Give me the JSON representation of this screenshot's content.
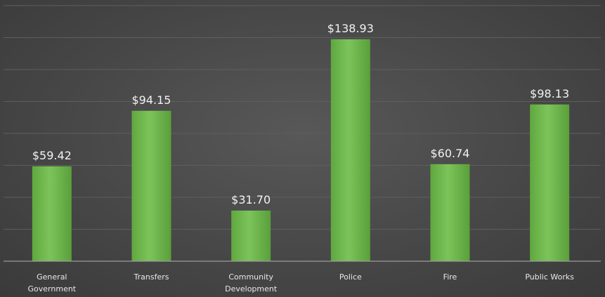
{
  "chart_data": {
    "type": "bar",
    "categories": [
      [
        "General",
        "Government"
      ],
      [
        "Transfers"
      ],
      [
        "Community",
        "Development"
      ],
      [
        "Police"
      ],
      [
        "Fire"
      ],
      [
        "Public Works"
      ]
    ],
    "values": [
      59.42,
      94.15,
      31.7,
      138.93,
      60.74,
      98.13
    ],
    "data_labels": [
      "$59.42",
      "$94.15",
      "$31.70",
      "$138.93",
      "$60.74",
      "$98.13"
    ],
    "title": "",
    "xlabel": "",
    "ylabel": "",
    "ylim": [
      0,
      160
    ],
    "grid": true,
    "legend": "none",
    "colors": {
      "bar": "#6ab04c",
      "bar_light": "#7cc45a",
      "background": "#474747",
      "grid": "#5e5e5e",
      "text": "#f2f2f2"
    }
  }
}
